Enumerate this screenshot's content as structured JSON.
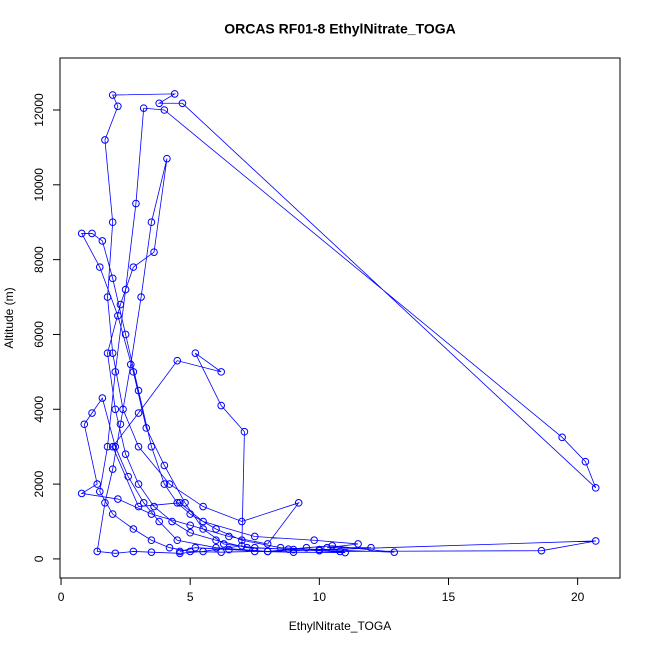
{
  "chart_data": {
    "type": "line",
    "title": "ORCAS RF01-8 EthylNitrate_TOGA",
    "x_label": "EthylNitrate_TOGA",
    "y_label": "Altitude (m)",
    "color": "#0000ff",
    "x": [
      4.6,
      5.2,
      6.5,
      8,
      9.5,
      10.5,
      12.9,
      10,
      8.5,
      7,
      6,
      5,
      4.5,
      4,
      3.5,
      3,
      2.5,
      2,
      1.6,
      1.2,
      0.8,
      1.5,
      2.2,
      2.8,
      3.3,
      4,
      4.8,
      5.5,
      6.3,
      7.5,
      9,
      10.8,
      18.6,
      20.7,
      8,
      6,
      4.5,
      3.8,
      3.2,
      2.6,
      2.1,
      1.6,
      1.2,
      0.9,
      1.4,
      0.8,
      2.2,
      3.5,
      5,
      6.5,
      8,
      9.2,
      7,
      5.5,
      4.2,
      3,
      2.4,
      2,
      1.8,
      2,
      1.7,
      2.2,
      2,
      4.4,
      3.8,
      4.7,
      20.7,
      20.3,
      19.4,
      4,
      3.2,
      2.9,
      2.5,
      2.1,
      1.8,
      1.5,
      2,
      2.8,
      3.5,
      4.2,
      5,
      6.2,
      7.5,
      9,
      11,
      10,
      8.8,
      7.2,
      6,
      5,
      4.3,
      3.6,
      3,
      2.5,
      2.1,
      1.8,
      2.3,
      2.8,
      3.6,
      4.1,
      3.5,
      3.1,
      2.7,
      2.3,
      2,
      1.7,
      1.4,
      2.1,
      2.8,
      3.5,
      4.6,
      5.5,
      7,
      7.1,
      6.2,
      5.2,
      6.2,
      4.5,
      3,
      2,
      3,
      4.6,
      5.5,
      7.5,
      9.8,
      11.5,
      10.3,
      12
    ],
    "values": [
      200,
      300,
      250,
      200,
      300,
      350,
      180,
      250,
      300,
      500,
      800,
      1200,
      1500,
      2000,
      3000,
      4500,
      6000,
      7500,
      8500,
      8700,
      8700,
      7800,
      6500,
      5000,
      3500,
      2500,
      1500,
      800,
      400,
      300,
      250,
      200,
      220,
      480,
      200,
      300,
      500,
      1000,
      1500,
      2200,
      3000,
      4300,
      3900,
      3600,
      2000,
      1750,
      1600,
      1200,
      900,
      600,
      400,
      1500,
      1000,
      1400,
      2000,
      3000,
      4000,
      5500,
      7000,
      9000,
      11200,
      12100,
      12400,
      12430,
      12180,
      12180,
      1900,
      2600,
      3250,
      12000,
      12050,
      9500,
      7200,
      5000,
      3000,
      1800,
      1200,
      800,
      500,
      300,
      200,
      180,
      200,
      180,
      170,
      220,
      260,
      300,
      500,
      700,
      1000,
      1400,
      2000,
      2800,
      4000,
      5500,
      6800,
      7800,
      8200,
      10700,
      9000,
      7000,
      5200,
      3600,
      2400,
      1500,
      200,
      150,
      200,
      180,
      150,
      200,
      350,
      3400,
      4100,
      5500,
      5000,
      5300,
      3900,
      3000,
      1400,
      1500,
      1000,
      600,
      500,
      400,
      300,
      300
    ],
    "xlim": [
      -0.04,
      21.64
    ],
    "ylim": [
      -510,
      13390
    ],
    "xticks": [
      0,
      5,
      10,
      15,
      20
    ],
    "yticks": [
      0,
      2000,
      4000,
      6000,
      8000,
      10000,
      12000
    ]
  }
}
